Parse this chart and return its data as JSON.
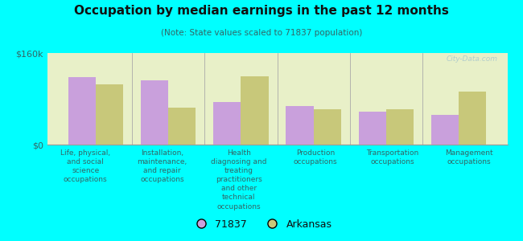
{
  "title": "Occupation by median earnings in the past 12 months",
  "subtitle": "(Note: State values scaled to 71837 population)",
  "background_color": "#00FFFF",
  "plot_bg_color_top": "#e8f0c8",
  "plot_bg_color_bottom": "#f8fef0",
  "categories": [
    "Life, physical,\nand social\nscience\noccupations",
    "Installation,\nmaintenance,\nand repair\noccupations",
    "Health\ndiagnosing and\ntreating\npractitioners\nand other\ntechnical\noccupations",
    "Production\noccupations",
    "Transportation\noccupations",
    "Management\noccupations"
  ],
  "values_71837": [
    118000,
    112000,
    75000,
    68000,
    58000,
    52000
  ],
  "values_arkansas": [
    105000,
    65000,
    120000,
    62000,
    62000,
    92000
  ],
  "color_71837": "#c9a0dc",
  "color_arkansas": "#c8c87a",
  "ylim": [
    0,
    160000
  ],
  "ytick_labels": [
    "$0",
    "$160k"
  ],
  "legend_labels": [
    "71837",
    "Arkansas"
  ],
  "watermark": "City-Data.com",
  "bar_width": 0.38
}
